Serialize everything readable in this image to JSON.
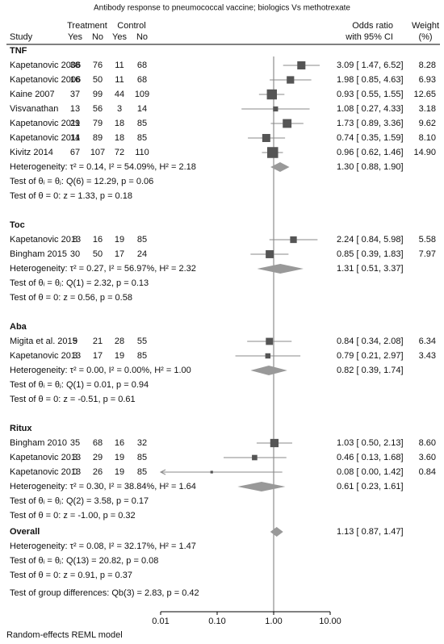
{
  "chart_data": {
    "type": "forest",
    "title": "Antibody response to pneumococcal vaccine; biologics Vs methotrexate",
    "headers": {
      "study": "Study",
      "treatment": "Treatment",
      "control": "Control",
      "yes_t": "Yes",
      "no_t": "No",
      "yes_c": "Yes",
      "no_c": "No",
      "or": "Odds ratio",
      "ci": "with 95% CI",
      "weight": "Weight",
      "pct": "(%)"
    },
    "groups": [
      {
        "name": "TNF",
        "studies": [
          {
            "study": "Kapetanovic 2006",
            "counts": [
              38,
              76,
              11,
              68
            ],
            "or": 3.09,
            "lo": 1.47,
            "hi": 6.52,
            "ci_label": "3.09 [ 1.47, 6.52]",
            "weight": 8.28
          },
          {
            "study": "Kapetanovic 2006",
            "counts": [
              16,
              50,
              11,
              68
            ],
            "or": 1.98,
            "lo": 0.85,
            "hi": 4.63,
            "ci_label": "1.98 [ 0.85, 4.63]",
            "weight": 6.93
          },
          {
            "study": "Kaine 2007",
            "counts": [
              37,
              99,
              44,
              109
            ],
            "or": 0.93,
            "lo": 0.55,
            "hi": 1.55,
            "ci_label": "0.93 [ 0.55, 1.55]",
            "weight": 12.65
          },
          {
            "study": "Visvanathan",
            "counts": [
              13,
              56,
              3,
              14
            ],
            "or": 1.08,
            "lo": 0.27,
            "hi": 4.33,
            "ci_label": "1.08 [ 0.27, 4.33]",
            "weight": 3.18
          },
          {
            "study": "Kapetanovic 2011",
            "counts": [
              29,
              79,
              18,
              85
            ],
            "or": 1.73,
            "lo": 0.89,
            "hi": 3.36,
            "ci_label": "1.73 [ 0.89, 3.36]",
            "weight": 9.62
          },
          {
            "study": "Kapetanovic 2011",
            "counts": [
              14,
              89,
              18,
              85
            ],
            "or": 0.74,
            "lo": 0.35,
            "hi": 1.59,
            "ci_label": "0.74 [ 0.35, 1.59]",
            "weight": 8.1,
            "weight_label": "8.10"
          },
          {
            "study": "Kivitz 2014",
            "counts": [
              67,
              107,
              72,
              110
            ],
            "or": 0.96,
            "lo": 0.62,
            "hi": 1.46,
            "ci_label": "0.96 [ 0.62, 1.46]",
            "weight": 14.9,
            "weight_label": "14.90"
          }
        ],
        "pooled": {
          "or": 1.3,
          "lo": 0.88,
          "hi": 1.9,
          "ci_label": "1.30 [ 0.88, 1.90]"
        },
        "heterogeneity": "Heterogeneity: τ² = 0.14, I² = 54.09%, H² = 2.18",
        "tests": [
          "Test of θᵢ = θⱼ: Q(6) = 12.29, p = 0.06",
          "Test of θ = 0: z = 1.33, p = 0.18"
        ]
      },
      {
        "name": "Toc",
        "studies": [
          {
            "study": "Kapetanovic 2013",
            "counts": [
              8,
              16,
              19,
              85
            ],
            "or": 2.24,
            "lo": 0.84,
            "hi": 5.98,
            "ci_label": "2.24 [ 0.84, 5.98]",
            "weight": 5.58
          },
          {
            "study": "Bingham 2015",
            "counts": [
              30,
              50,
              17,
              24
            ],
            "or": 0.85,
            "lo": 0.39,
            "hi": 1.83,
            "ci_label": "0.85 [ 0.39, 1.83]",
            "weight": 7.97
          }
        ],
        "pooled": {
          "or": 1.31,
          "lo": 0.51,
          "hi": 3.37,
          "ci_label": "1.31 [ 0.51, 3.37]"
        },
        "heterogeneity": "Heterogeneity: τ² = 0.27, I² = 56.97%, H² = 2.32",
        "tests": [
          "Test of θᵢ = θⱼ: Q(1) = 2.32, p = 0.13",
          "Test of θ = 0: z = 0.56, p = 0.58"
        ]
      },
      {
        "name": "Aba",
        "studies": [
          {
            "study": "Migita et al. 2015",
            "counts": [
              9,
              21,
              28,
              55
            ],
            "or": 0.84,
            "lo": 0.34,
            "hi": 2.08,
            "ci_label": "0.84 [ 0.34, 2.08]",
            "weight": 6.34
          },
          {
            "study": "Kapetanovic 2013",
            "counts": [
              3,
              17,
              19,
              85
            ],
            "or": 0.79,
            "lo": 0.21,
            "hi": 2.97,
            "ci_label": "0.79 [ 0.21, 2.97]",
            "weight": 3.43
          }
        ],
        "pooled": {
          "or": 0.82,
          "lo": 0.39,
          "hi": 1.74,
          "ci_label": "0.82 [ 0.39, 1.74]"
        },
        "heterogeneity": "Heterogeneity: τ² = 0.00, I² = 0.00%, H² = 1.00",
        "tests": [
          "Test of θᵢ = θⱼ: Q(1) = 0.01, p = 0.94",
          "Test of θ = 0: z = -0.51, p = 0.61"
        ]
      },
      {
        "name": "Ritux",
        "studies": [
          {
            "study": "Bingham 2010",
            "counts": [
              35,
              68,
              16,
              32
            ],
            "or": 1.03,
            "lo": 0.5,
            "hi": 2.13,
            "ci_label": "1.03 [ 0.50, 2.13]",
            "weight": 8.6,
            "weight_label": "8.60"
          },
          {
            "study": "Kapetanovic 2013",
            "counts": [
              3,
              29,
              19,
              85
            ],
            "or": 0.46,
            "lo": 0.13,
            "hi": 1.68,
            "ci_label": "0.46 [ 0.13, 1.68]",
            "weight": 3.6,
            "weight_label": "3.60"
          },
          {
            "study": "Kapetanovic 2013",
            "counts": [
              0,
              26,
              19,
              85
            ],
            "or": 0.08,
            "lo": 0,
            "hi": 1.42,
            "ci_label": "0.08 [ 0.00, 1.42]",
            "weight": 0.84
          }
        ],
        "pooled": {
          "or": 0.61,
          "lo": 0.23,
          "hi": 1.61,
          "ci_label": "0.61 [ 0.23, 1.61]"
        },
        "heterogeneity": "Heterogeneity: τ² = 0.30, I² = 38.84%, H² = 1.64",
        "tests": [
          "Test of θᵢ = θⱼ: Q(2) = 3.58, p = 0.17",
          "Test of θ = 0: z = -1.00, p = 0.32"
        ]
      }
    ],
    "overall": {
      "name": "Overall",
      "or": 1.13,
      "lo": 0.87,
      "hi": 1.47,
      "ci_label": "1.13 [ 0.87, 1.47]",
      "heterogeneity": "Heterogeneity: τ² = 0.08, I² = 32.17%, H² = 1.47",
      "tests": [
        "Test of θᵢ = θⱼ: Q(13) = 20.82, p = 0.08",
        "Test of θ = 0: z = 0.91, p = 0.37"
      ],
      "group_test": "Test of group differences: Qb(3) = 2.83, p = 0.42"
    },
    "xlim": [
      0.01,
      10
    ],
    "log_x": true,
    "xticks": [
      0.01,
      {
        "value": 0.1,
        "label": "0.10"
      },
      {
        "value": 1,
        "label": "1.00"
      },
      {
        "value": 10,
        "label": "10.00"
      }
    ],
    "marker_color": "#555555",
    "ci_color": "#8a8a8a",
    "diamond_color": "#999999",
    "note": "Random-effects REML model"
  }
}
